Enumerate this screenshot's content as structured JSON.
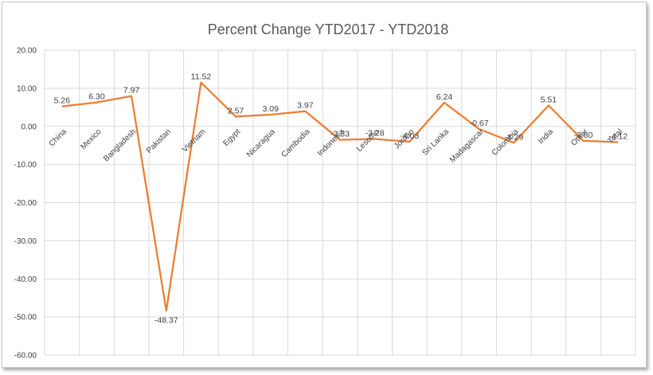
{
  "chart_data": {
    "type": "line",
    "title": "Percent Change YTD2017 - YTD2018",
    "xlabel": "",
    "ylabel": "",
    "categories": [
      "China",
      "Mexico",
      "Bangladesh",
      "Pakistan",
      "Vietnam",
      "Egypt",
      "Nicaragua",
      "Cambodia",
      "Indonesia",
      "Lesotho",
      "Jordan",
      "Sri Lanka",
      "Madagascar",
      "Colombia",
      "India",
      "Other",
      "Total"
    ],
    "values": [
      5.26,
      6.3,
      7.97,
      -48.37,
      11.52,
      2.57,
      3.09,
      3.97,
      -3.53,
      -3.28,
      -4.03,
      6.24,
      -0.67,
      -4.29,
      5.51,
      -3.8,
      -4.12
    ],
    "data_labels": [
      "5.26",
      "6.30",
      "7.97",
      "-48.37",
      "11.52",
      "2.57",
      "3.09",
      "3.97",
      "-3.53",
      "-3.28",
      "-4.03",
      "6.24",
      "-0.67",
      "-4.29",
      "5.51",
      "-3.80",
      "-4.12"
    ],
    "ylim": [
      -60,
      20
    ],
    "yticks": [
      20,
      10,
      0,
      -10,
      -20,
      -30,
      -40,
      -50,
      -60
    ],
    "ytick_labels": [
      "20.00",
      "10.00",
      "0.00",
      "-10.00",
      "-20.00",
      "-30.00",
      "-40.00",
      "-50.00",
      "-60.00"
    ],
    "grid": true,
    "line_color": "#ED7D31",
    "grid_color": "#d9d9d9"
  }
}
